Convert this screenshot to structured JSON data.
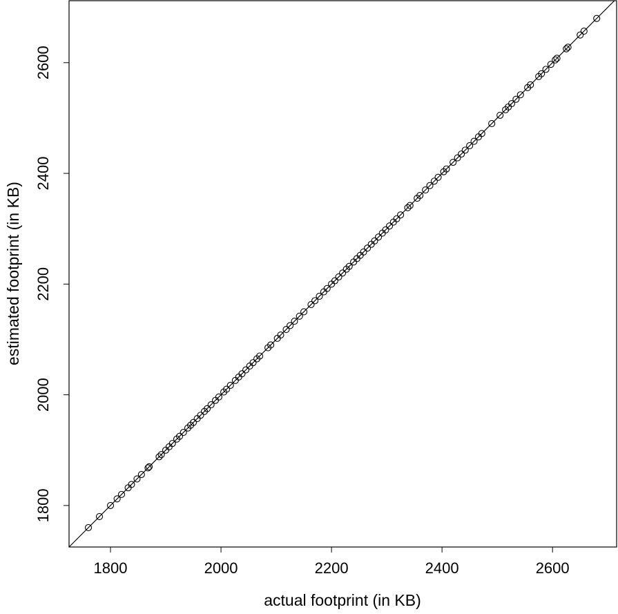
{
  "chart_data": {
    "type": "scatter",
    "x_label": "actual footprint (in KB)",
    "y_label": "estimated footprint (in KB)",
    "x": [
      1760,
      1780,
      1800,
      1812,
      1820,
      1832,
      1838,
      1848,
      1856,
      1868,
      1870,
      1888,
      1892,
      1900,
      1906,
      1912,
      1920,
      1925,
      1932,
      1940,
      1945,
      1950,
      1957,
      1963,
      1970,
      1975,
      1982,
      1990,
      1996,
      2005,
      2010,
      2017,
      2026,
      2032,
      2038,
      2045,
      2052,
      2058,
      2065,
      2070,
      2085,
      2090,
      2102,
      2108,
      2118,
      2125,
      2133,
      2142,
      2150,
      2163,
      2170,
      2178,
      2186,
      2192,
      2200,
      2206,
      2213,
      2220,
      2227,
      2232,
      2240,
      2246,
      2252,
      2258,
      2265,
      2272,
      2278,
      2285,
      2292,
      2298,
      2305,
      2312,
      2318,
      2325,
      2338,
      2342,
      2355,
      2360,
      2370,
      2378,
      2386,
      2393,
      2403,
      2408,
      2420,
      2428,
      2435,
      2442,
      2450,
      2458,
      2466,
      2472,
      2490,
      2505,
      2515,
      2520,
      2526,
      2534,
      2542,
      2555,
      2560,
      2575,
      2580,
      2588,
      2597,
      2605,
      2608,
      2625,
      2628,
      2650,
      2657,
      2680
    ],
    "y": [
      1760,
      1780,
      1800,
      1812,
      1820,
      1832,
      1838,
      1848,
      1856,
      1868,
      1870,
      1888,
      1892,
      1900,
      1906,
      1912,
      1920,
      1925,
      1932,
      1940,
      1945,
      1950,
      1957,
      1963,
      1970,
      1975,
      1982,
      1990,
      1996,
      2005,
      2010,
      2017,
      2026,
      2032,
      2038,
      2045,
      2052,
      2058,
      2065,
      2070,
      2085,
      2090,
      2102,
      2108,
      2118,
      2125,
      2133,
      2142,
      2150,
      2163,
      2170,
      2178,
      2186,
      2192,
      2200,
      2206,
      2213,
      2220,
      2227,
      2232,
      2240,
      2246,
      2252,
      2258,
      2265,
      2272,
      2278,
      2285,
      2292,
      2298,
      2305,
      2312,
      2318,
      2325,
      2338,
      2342,
      2355,
      2360,
      2370,
      2378,
      2386,
      2393,
      2403,
      2408,
      2420,
      2428,
      2435,
      2442,
      2450,
      2458,
      2466,
      2472,
      2490,
      2505,
      2515,
      2520,
      2526,
      2534,
      2542,
      2555,
      2560,
      2575,
      2580,
      2588,
      2597,
      2605,
      2608,
      2625,
      2628,
      2650,
      2657,
      2680
    ],
    "color": "#000000",
    "identity_line": true,
    "xlim": [
      1725,
      2716
    ],
    "ylim": [
      1725,
      2712
    ],
    "xticks": [
      1800,
      2000,
      2200,
      2400,
      2600
    ],
    "yticks": [
      1800,
      2000,
      2200,
      2400,
      2600
    ]
  }
}
